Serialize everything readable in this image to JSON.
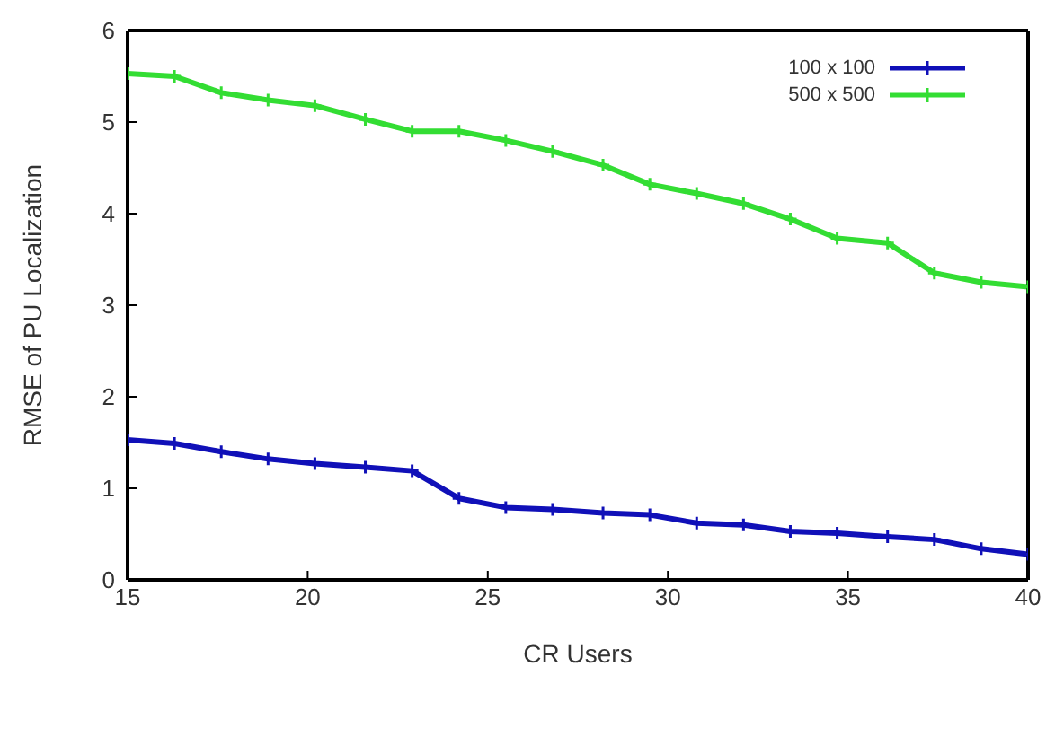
{
  "chart_data": {
    "type": "line",
    "xlabel": "CR Users",
    "ylabel": "RMSE of PU Localization",
    "x": [
      15,
      16.3,
      17.6,
      18.9,
      20.2,
      21.6,
      22.9,
      24.2,
      25.5,
      26.8,
      28.2,
      29.5,
      30.8,
      32.1,
      33.4,
      34.7,
      36.1,
      37.4,
      38.7,
      40
    ],
    "series": [
      {
        "name": "100 x 100",
        "color": "#1010b8",
        "values": [
          1.53,
          1.49,
          1.4,
          1.32,
          1.27,
          1.23,
          1.19,
          0.89,
          0.79,
          0.77,
          0.73,
          0.71,
          0.62,
          0.6,
          0.53,
          0.51,
          0.47,
          0.44,
          0.34,
          0.28
        ]
      },
      {
        "name": "500 x 500",
        "color": "#33dd33",
        "values": [
          5.53,
          5.5,
          5.32,
          5.24,
          5.18,
          5.03,
          4.9,
          4.9,
          4.8,
          4.68,
          4.53,
          4.32,
          4.22,
          4.11,
          3.94,
          3.73,
          3.68,
          3.35,
          3.25,
          3.2
        ]
      }
    ],
    "xlim": [
      15,
      40
    ],
    "xticks": [
      15,
      20,
      25,
      30,
      35,
      40
    ],
    "ylim": [
      0,
      6
    ],
    "yticks": [
      0,
      1,
      2,
      3,
      4,
      5,
      6
    ],
    "grid": false,
    "legend": "top right",
    "marker": "cross",
    "line_style": "solid"
  }
}
